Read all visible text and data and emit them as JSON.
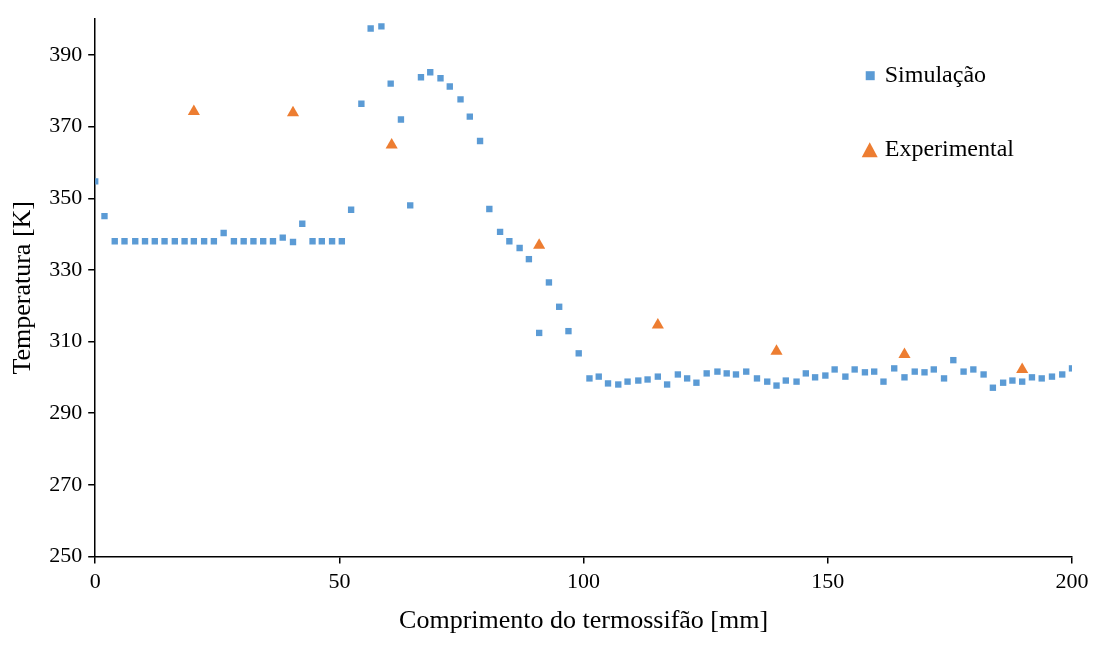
{
  "chart_data": {
    "type": "scatter",
    "xlabel": "Comprimento do termossifão [mm]",
    "ylabel": "Temperatura [K]",
    "xlim": [
      0,
      200
    ],
    "xticks": [
      0,
      50,
      100,
      150,
      200
    ],
    "ylim": [
      250,
      400
    ],
    "yticks": [
      250,
      270,
      290,
      310,
      330,
      350,
      370,
      390
    ],
    "grid": false,
    "legend": "top right",
    "series": [
      {
        "name": "Simulação",
        "color": "#5b9bd5",
        "marker": "square",
        "x": [
          0,
          1.9,
          4,
          6,
          8.2,
          10.2,
          12.2,
          14.2,
          16.3,
          18.3,
          20.2,
          22.3,
          24.3,
          26.3,
          28.4,
          30.4,
          32.4,
          34.4,
          36.4,
          38.4,
          40.5,
          42.4,
          44.5,
          46.4,
          48.5,
          50.5,
          52.4,
          54.5,
          56.4,
          58.6,
          60.5,
          62.6,
          64.5,
          66.7,
          68.6,
          70.7,
          72.6,
          74.8,
          76.7,
          78.8,
          80.7,
          82.9,
          84.8,
          86.9,
          88.8,
          90.9,
          92.9,
          95,
          96.9,
          99,
          101.2,
          103.1,
          105,
          107.1,
          109,
          111.2,
          113.1,
          115.2,
          117.1,
          119.3,
          121.2,
          123.1,
          125.2,
          127.4,
          129.3,
          131.2,
          133.3,
          135.5,
          137.6,
          139.5,
          141.4,
          143.6,
          145.5,
          147.4,
          149.5,
          151.4,
          153.6,
          155.5,
          157.6,
          159.5,
          161.4,
          163.6,
          165.7,
          167.8,
          169.8,
          171.7,
          173.8,
          175.7,
          177.8,
          179.8,
          181.9,
          183.8,
          185.9,
          187.8,
          189.8,
          191.8,
          193.8,
          195.9,
          198,
          200
        ],
        "values": [
          354.7,
          345,
          338,
          338,
          338,
          338,
          338,
          338,
          338,
          338,
          338,
          338,
          338,
          340.3,
          338,
          338,
          338,
          338,
          338,
          339,
          337.8,
          342.9,
          338,
          338,
          338,
          338,
          346.8,
          376.4,
          397.4,
          398,
          382,
          372,
          348,
          383.8,
          385.2,
          383.5,
          381.2,
          377.6,
          372.8,
          366,
          347,
          340.6,
          338,
          336.1,
          333,
          312.4,
          326.5,
          319.7,
          312.9,
          306.7,
          299.7,
          300.2,
          298.3,
          298,
          298.8,
          299.1,
          299.4,
          300.2,
          298,
          300.8,
          299.7,
          298.5,
          301.1,
          301.6,
          301.1,
          300.8,
          301.6,
          299.7,
          298.8,
          297.7,
          299.1,
          298.8,
          301.1,
          300,
          300.5,
          302.2,
          300.2,
          302.2,
          301.4,
          301.6,
          298.8,
          302.5,
          300,
          301.6,
          301.4,
          302.2,
          299.7,
          304.8,
          301.6,
          302.2,
          300.8,
          297.1,
          298.5,
          299.1,
          298.8,
          300,
          299.7,
          300.2,
          300.8,
          302.5
        ]
      },
      {
        "name": "Experimental",
        "color": "#ed7d31",
        "marker": "triangle",
        "x": [
          20.2,
          40.5,
          60.7,
          90.9,
          115.2,
          139.5,
          165.7,
          189.8
        ],
        "values": [
          374.2,
          373.9,
          364.9,
          336.9,
          314.6,
          307.3,
          306.4,
          302.2
        ]
      }
    ]
  }
}
